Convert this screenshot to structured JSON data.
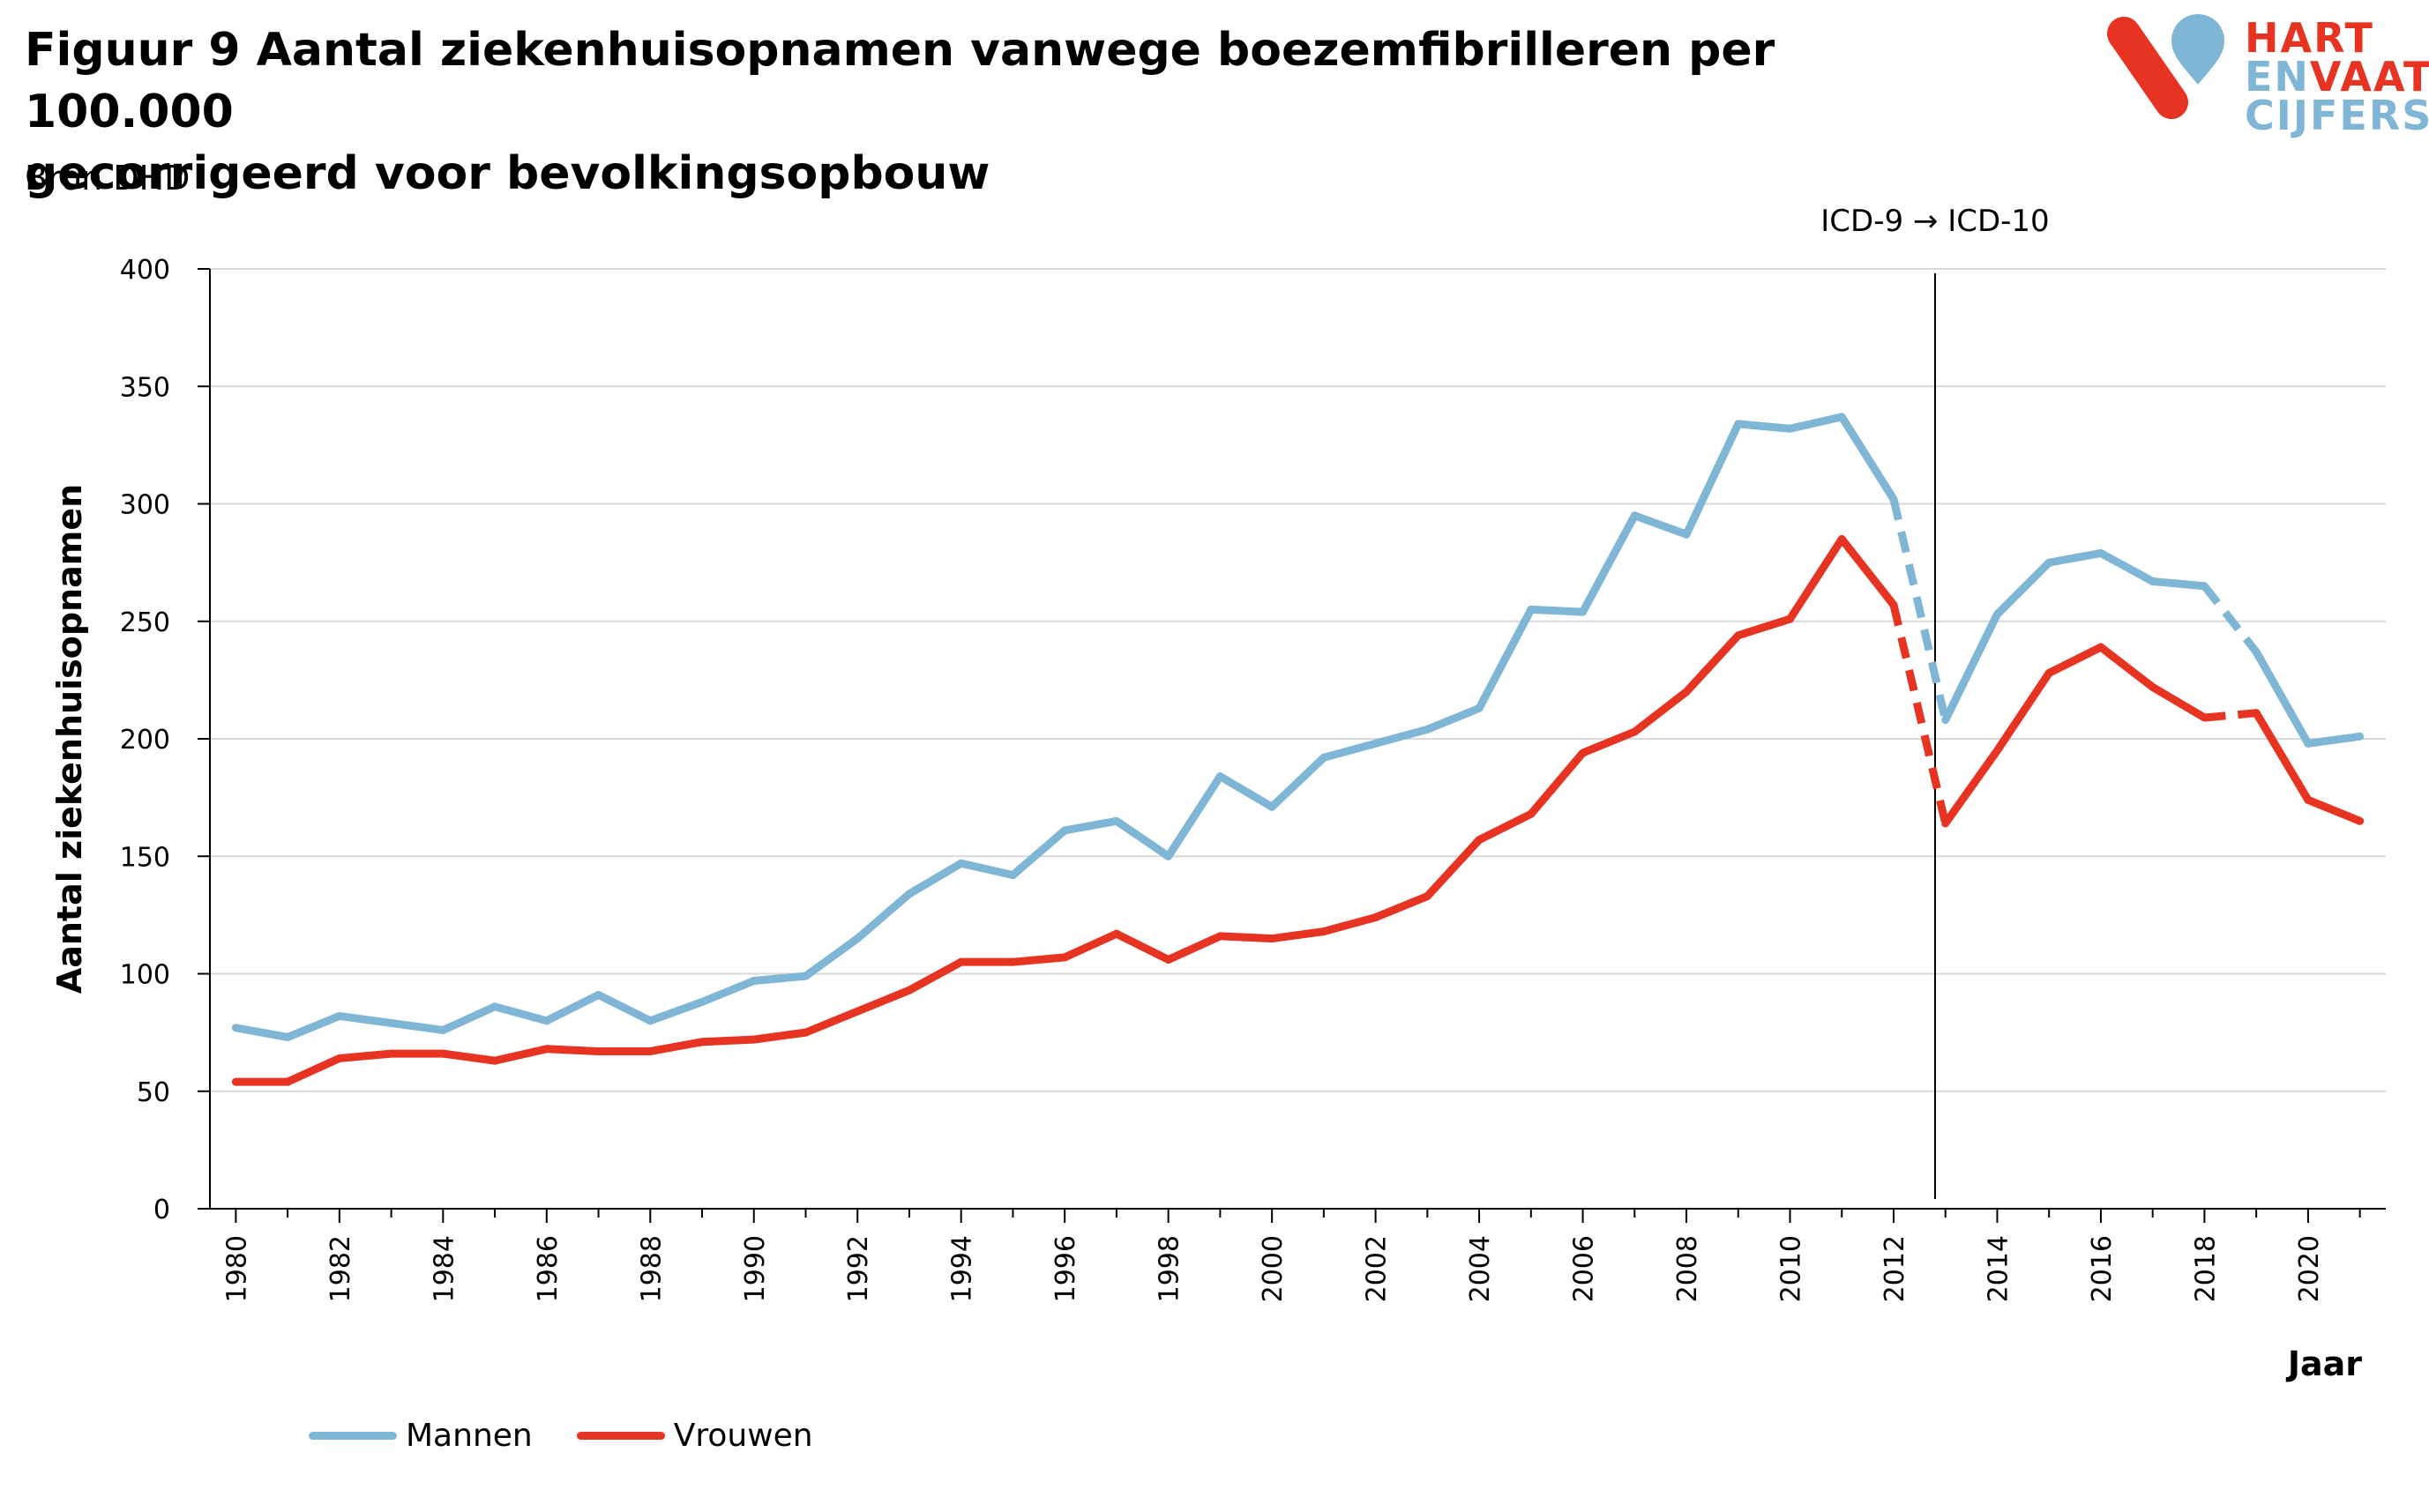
{
  "title_line1": "Figuur 9 Aantal ziekenhuisopnamen vanwege boezemfibrilleren per 100.000",
  "title_line2": "gecorrigeerd voor bevolkingsopbouw",
  "source": "Bron DHD",
  "logo": {
    "line1": "HART",
    "line2a": "EN",
    "line2b": "VAAT",
    "line3": "CIJFERS"
  },
  "colors": {
    "mannen": "#7fb6d5",
    "vrouwen": "#e63322"
  },
  "chart_data": {
    "type": "line",
    "ylabel": "Aantal ziekenhuisopnamen",
    "xlabel": "Jaar",
    "ylim": [
      0,
      400
    ],
    "yticks": [
      0,
      50,
      100,
      150,
      200,
      250,
      300,
      350,
      400
    ],
    "xticks": [
      1980,
      1982,
      1984,
      1986,
      1988,
      1990,
      1992,
      1994,
      1996,
      1998,
      2000,
      2002,
      2004,
      2006,
      2008,
      2010,
      2012,
      2014,
      2016,
      2018,
      2020
    ],
    "xlim": [
      1979.5,
      2021.5
    ],
    "grid": "horizontal",
    "annotation": {
      "text": "ICD-9 → ICD-10",
      "x": 2012.8
    },
    "dashed_segments": [
      [
        2012,
        2013
      ],
      [
        2018,
        2019
      ]
    ],
    "x": [
      1980,
      1981,
      1982,
      1983,
      1984,
      1985,
      1986,
      1987,
      1988,
      1989,
      1990,
      1991,
      1992,
      1993,
      1994,
      1995,
      1996,
      1997,
      1998,
      1999,
      2000,
      2001,
      2002,
      2003,
      2004,
      2005,
      2006,
      2007,
      2008,
      2009,
      2010,
      2011,
      2012,
      2013,
      2014,
      2015,
      2016,
      2017,
      2018,
      2019,
      2020,
      2021
    ],
    "series": [
      {
        "name": "Mannen",
        "color": "#7fb6d5",
        "values": [
          77,
          73,
          82,
          79,
          76,
          86,
          80,
          91,
          80,
          88,
          97,
          99,
          115,
          134,
          147,
          142,
          161,
          165,
          150,
          184,
          171,
          192,
          198,
          204,
          213,
          255,
          254,
          295,
          287,
          334,
          332,
          337,
          302,
          208,
          253,
          275,
          279,
          267,
          265,
          237,
          198,
          201
        ]
      },
      {
        "name": "Vrouwen",
        "color": "#e63322",
        "values": [
          54,
          54,
          64,
          66,
          66,
          63,
          68,
          67,
          67,
          71,
          72,
          75,
          84,
          93,
          105,
          105,
          107,
          117,
          106,
          116,
          115,
          118,
          124,
          133,
          157,
          168,
          194,
          203,
          220,
          244,
          251,
          285,
          257,
          164,
          195,
          228,
          239,
          222,
          209,
          211,
          174,
          165
        ]
      }
    ]
  }
}
